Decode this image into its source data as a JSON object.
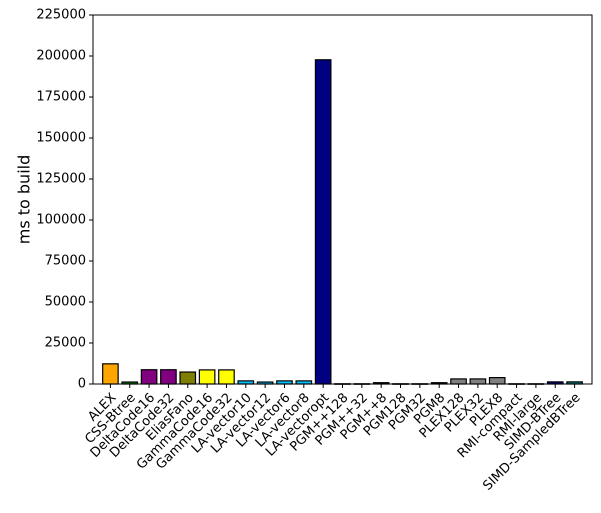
{
  "chart_data": {
    "type": "bar",
    "title": "",
    "xlabel": "",
    "ylabel": "ms to build",
    "ylim": [
      0,
      225000
    ],
    "yticks": [
      0,
      25000,
      50000,
      75000,
      100000,
      125000,
      150000,
      175000,
      200000,
      225000
    ],
    "grid": false,
    "categories": [
      "ALEX",
      "CSS-Btree",
      "DeltaCode16",
      "DeltaCode32",
      "EliasFano",
      "GammaCode16",
      "GammaCode32",
      "LA-vector10",
      "LA-vector12",
      "LA-vector6",
      "LA-vector8",
      "LA-vectoropt",
      "PGM++128",
      "PGM++32",
      "PGM++8",
      "PGM128",
      "PGM32",
      "PGM8",
      "PLEX128",
      "PLEX32",
      "PLEX8",
      "RMI-compact",
      "RMI-large",
      "SIMD-BTree",
      "SIMD-SampledBTree"
    ],
    "values": [
      12300,
      1200,
      8700,
      8700,
      7300,
      8600,
      8600,
      1900,
      1200,
      1900,
      1900,
      197700,
      150,
      150,
      800,
      150,
      150,
      800,
      3100,
      3100,
      3900,
      150,
      150,
      1300,
      1300
    ],
    "colors": [
      "#ffa500",
      "#008000",
      "#800080",
      "#800080",
      "#808000",
      "#ffff00",
      "#ffff00",
      "#00bfff",
      "#00bfff",
      "#00bfff",
      "#00bfff",
      "#000080",
      "#000000",
      "#000000",
      "#000000",
      "#000000",
      "#000000",
      "#000000",
      "#808080",
      "#808080",
      "#808080",
      "#000000",
      "#000000",
      "#00008b",
      "#008080"
    ]
  }
}
